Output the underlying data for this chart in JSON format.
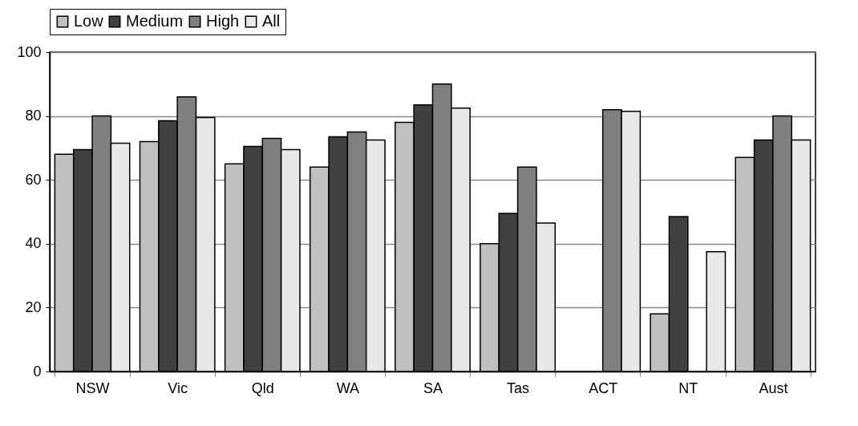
{
  "chart_data": {
    "type": "bar",
    "categories": [
      "NSW",
      "Vic",
      "Qld",
      "WA",
      "SA",
      "Tas",
      "ACT",
      "NT",
      "Aust"
    ],
    "series": [
      {
        "name": "Low",
        "color": "#c0c0c0",
        "values": [
          68,
          72,
          65,
          64,
          78,
          40,
          null,
          18,
          67
        ]
      },
      {
        "name": "Medium",
        "color": "#404040",
        "values": [
          69.5,
          78.5,
          70.5,
          73.5,
          83.5,
          49.5,
          null,
          48.5,
          72.5
        ]
      },
      {
        "name": "High",
        "color": "#808080",
        "values": [
          80,
          86,
          73,
          75,
          90,
          64,
          82,
          null,
          80
        ]
      },
      {
        "name": "All",
        "color": "#e8e8e8",
        "values": [
          71.5,
          79.5,
          69.5,
          72.5,
          82.5,
          46.5,
          81.5,
          37.5,
          72.5
        ]
      }
    ],
    "ylim": [
      0,
      100
    ],
    "yticks": [
      0,
      20,
      40,
      60,
      80,
      100
    ],
    "grid": "y",
    "legend": "top"
  }
}
